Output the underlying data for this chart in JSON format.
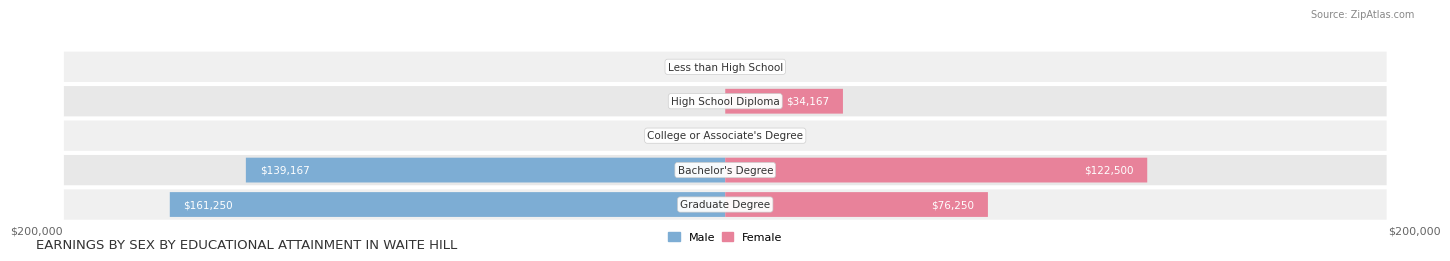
{
  "title": "EARNINGS BY SEX BY EDUCATIONAL ATTAINMENT IN WAITE HILL",
  "source": "Source: ZipAtlas.com",
  "categories": [
    "Less than High School",
    "High School Diploma",
    "College or Associate's Degree",
    "Bachelor's Degree",
    "Graduate Degree"
  ],
  "male_values": [
    0,
    0,
    0,
    139167,
    161250
  ],
  "female_values": [
    0,
    34167,
    0,
    122500,
    76250
  ],
  "male_color": "#7dadd4",
  "female_color": "#e8829a",
  "max_val": 200000,
  "bar_height": 0.72,
  "row_colors": [
    "#f0f0f0",
    "#e8e8e8"
  ],
  "label_zero_color": "#666666",
  "axis_label_left": "$200,000",
  "axis_label_right": "$200,000",
  "legend_male": "Male",
  "legend_female": "Female",
  "title_fontsize": 9.5,
  "label_fontsize": 7.5,
  "cat_fontsize": 7.5,
  "axis_fontsize": 8,
  "source_fontsize": 7
}
